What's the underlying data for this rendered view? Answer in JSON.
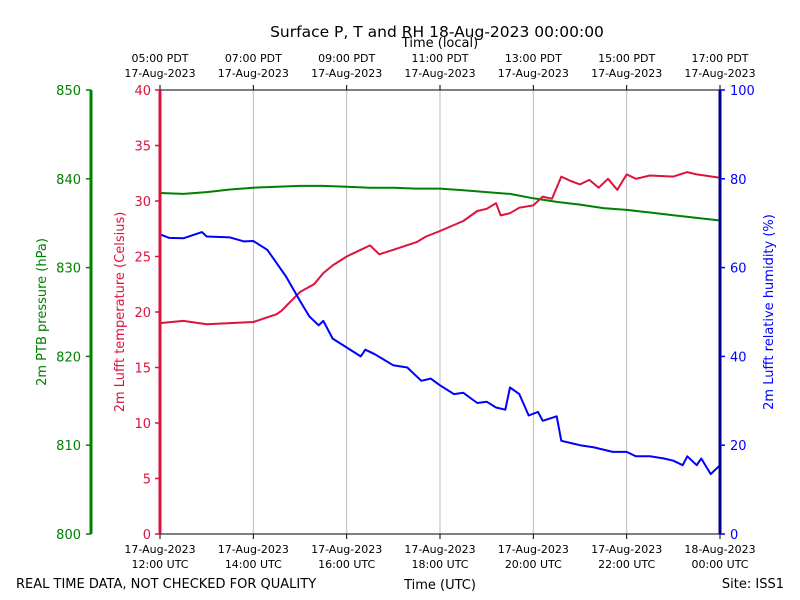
{
  "chart_data": {
    "type": "line",
    "title": "Surface P, T and RH 18-Aug-2023 00:00:00",
    "top_axis_label": "Time (local)",
    "top_ticks": [
      {
        "h": 0,
        "line1": "05:00 PDT",
        "line2": "17-Aug-2023"
      },
      {
        "h": 2,
        "line1": "07:00 PDT",
        "line2": "17-Aug-2023"
      },
      {
        "h": 4,
        "line1": "09:00 PDT",
        "line2": "17-Aug-2023"
      },
      {
        "h": 6,
        "line1": "11:00 PDT",
        "line2": "17-Aug-2023"
      },
      {
        "h": 8,
        "line1": "13:00 PDT",
        "line2": "17-Aug-2023"
      },
      {
        "h": 10,
        "line1": "15:00 PDT",
        "line2": "17-Aug-2023"
      },
      {
        "h": 12,
        "line1": "17:00 PDT",
        "line2": "17-Aug-2023"
      }
    ],
    "bottom_axis_label": "Time (UTC)",
    "bottom_ticks": [
      {
        "h": 0,
        "line1": "17-Aug-2023",
        "line2": "12:00 UTC"
      },
      {
        "h": 2,
        "line1": "17-Aug-2023",
        "line2": "14:00 UTC"
      },
      {
        "h": 4,
        "line1": "17-Aug-2023",
        "line2": "16:00 UTC"
      },
      {
        "h": 6,
        "line1": "17-Aug-2023",
        "line2": "18:00 UTC"
      },
      {
        "h": 8,
        "line1": "17-Aug-2023",
        "line2": "20:00 UTC"
      },
      {
        "h": 10,
        "line1": "17-Aug-2023",
        "line2": "22:00 UTC"
      },
      {
        "h": 12,
        "line1": "18-Aug-2023",
        "line2": "00:00 UTC"
      }
    ],
    "x_range_hours": [
      0,
      12
    ],
    "axes": {
      "pressure": {
        "label": "2m PTB pressure (hPa)",
        "color": "#008000",
        "ylim": [
          800,
          850
        ],
        "ticks": [
          800,
          810,
          820,
          830,
          840,
          850
        ]
      },
      "temperature": {
        "label": "2m Lufft temperature (Celsius)",
        "color": "#dc143c",
        "ylim": [
          0,
          40
        ],
        "ticks": [
          0,
          5,
          10,
          15,
          20,
          25,
          30,
          35,
          40
        ]
      },
      "humidity": {
        "label": "2m Lufft relative humidity (%)",
        "color": "#0000ff",
        "ylim": [
          0,
          100
        ],
        "ticks": [
          0,
          20,
          40,
          60,
          80,
          100
        ]
      }
    },
    "series": [
      {
        "name": "pressure",
        "axis": "pressure",
        "color": "#008000",
        "x": [
          0,
          0.5,
          1,
          1.5,
          2,
          2.5,
          3,
          3.5,
          4,
          4.5,
          5,
          5.5,
          6,
          6.5,
          7,
          7.5,
          8,
          8.5,
          9,
          9.5,
          10,
          10.5,
          11,
          11.5,
          12
        ],
        "y": [
          838.4,
          838.3,
          838.5,
          838.8,
          839.0,
          839.1,
          839.2,
          839.2,
          839.1,
          839.0,
          839.0,
          838.9,
          838.9,
          838.7,
          838.5,
          838.3,
          837.8,
          837.4,
          837.1,
          836.7,
          836.5,
          836.2,
          835.9,
          835.6,
          835.3
        ]
      },
      {
        "name": "temperature",
        "axis": "temperature",
        "color": "#dc143c",
        "x": [
          0,
          0.5,
          1,
          1.5,
          2,
          2.5,
          2.6,
          3,
          3.3,
          3.5,
          3.7,
          4,
          4.3,
          4.5,
          4.7,
          5,
          5.5,
          5.7,
          6,
          6.5,
          6.8,
          7,
          7.2,
          7.3,
          7.5,
          7.7,
          8,
          8.2,
          8.4,
          8.6,
          8.8,
          9,
          9.2,
          9.4,
          9.6,
          9.8,
          10,
          10.2,
          10.5,
          11,
          11.3,
          11.5,
          12
        ],
        "y": [
          19.0,
          19.2,
          18.9,
          19.0,
          19.1,
          19.8,
          20.1,
          21.8,
          22.5,
          23.5,
          24.2,
          25.0,
          25.6,
          26.0,
          25.2,
          25.6,
          26.3,
          26.8,
          27.3,
          28.2,
          29.1,
          29.3,
          29.8,
          28.7,
          28.9,
          29.4,
          29.6,
          30.4,
          30.2,
          32.2,
          31.8,
          31.5,
          31.9,
          31.2,
          32.0,
          31.0,
          32.4,
          32.0,
          32.3,
          32.2,
          32.6,
          32.4,
          32.1
        ]
      },
      {
        "name": "humidity",
        "axis": "humidity",
        "color": "#0000ff",
        "x": [
          0,
          0.2,
          0.5,
          0.9,
          1,
          1.5,
          1.8,
          2,
          2.3,
          2.5,
          2.7,
          3,
          3.2,
          3.4,
          3.5,
          3.7,
          4,
          4.3,
          4.4,
          4.6,
          5,
          5.3,
          5.6,
          5.8,
          6,
          6.3,
          6.5,
          6.8,
          7,
          7.2,
          7.4,
          7.5,
          7.7,
          7.9,
          8.1,
          8.2,
          8.5,
          8.6,
          8.8,
          9,
          9.3,
          9.5,
          9.7,
          10,
          10.2,
          10.5,
          10.8,
          11,
          11.2,
          11.3,
          11.5,
          11.6,
          11.8,
          12
        ],
        "y": [
          67.5,
          66.7,
          66.6,
          68.0,
          67.0,
          66.8,
          65.9,
          66.0,
          64.0,
          61.0,
          58.0,
          52.5,
          49.0,
          47.0,
          48.0,
          44.0,
          42.0,
          40.0,
          41.5,
          40.5,
          38.0,
          37.5,
          34.5,
          35.0,
          33.5,
          31.5,
          31.8,
          29.5,
          29.8,
          28.5,
          28.0,
          33.0,
          31.5,
          26.7,
          27.5,
          25.5,
          26.5,
          21.0,
          20.5,
          20.0,
          19.5,
          19.0,
          18.5,
          18.5,
          17.5,
          17.5,
          17.0,
          16.5,
          15.5,
          17.5,
          15.5,
          17.0,
          13.5,
          15.5
        ]
      }
    ],
    "grid": "vertical",
    "footer_left": "REAL TIME DATA, NOT CHECKED FOR QUALITY",
    "footer_right": "Site: ISS1"
  }
}
